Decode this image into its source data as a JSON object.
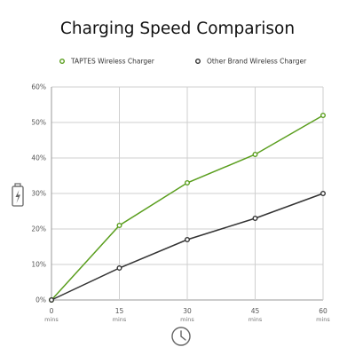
{
  "chart_data": {
    "type": "line",
    "title": "Charging Speed Comparison",
    "x": [
      0,
      15,
      30,
      45,
      60
    ],
    "x_tick_labels": [
      "0",
      "15",
      "30",
      "45",
      "60"
    ],
    "x_tick_unit": "mins",
    "y_tick_labels": [
      "0%",
      "10%",
      "20%",
      "30%",
      "40%",
      "50%",
      "60%"
    ],
    "ylim": [
      0,
      60
    ],
    "xlim": [
      0,
      60
    ],
    "grid": true,
    "legend_position": "top",
    "series": [
      {
        "name": "TAPTES Wireless Charger",
        "values": [
          0,
          21,
          33,
          41,
          52
        ],
        "color": "#5a9e1e"
      },
      {
        "name": "Other Brand Wireless Charger",
        "values": [
          0,
          9,
          17,
          23,
          30
        ],
        "color": "#333333"
      }
    ],
    "icons": {
      "y_axis": "battery-charging-icon",
      "x_axis": "clock-icon"
    }
  }
}
